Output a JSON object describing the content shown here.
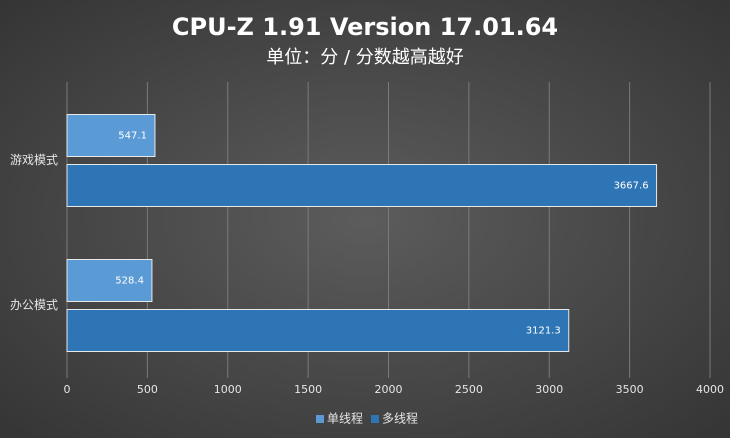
{
  "chart_data": {
    "type": "bar",
    "orientation": "horizontal",
    "title": "CPU-Z 1.91 Version 17.01.64",
    "subtitle": "单位：分 / 分数越高越好",
    "categories": [
      "游戏模式",
      "办公模式"
    ],
    "series": [
      {
        "name": "单线程",
        "color": "#5b9bd5",
        "values": [
          547.1,
          528.4
        ]
      },
      {
        "name": "多线程",
        "color": "#2e75b6",
        "values": [
          3667.6,
          3121.3
        ]
      }
    ],
    "xlim": [
      0,
      4000
    ],
    "xticks": [
      0,
      500,
      1000,
      1500,
      2000,
      2500,
      3000,
      3500,
      4000
    ],
    "grid": true,
    "legend": "bottom"
  }
}
